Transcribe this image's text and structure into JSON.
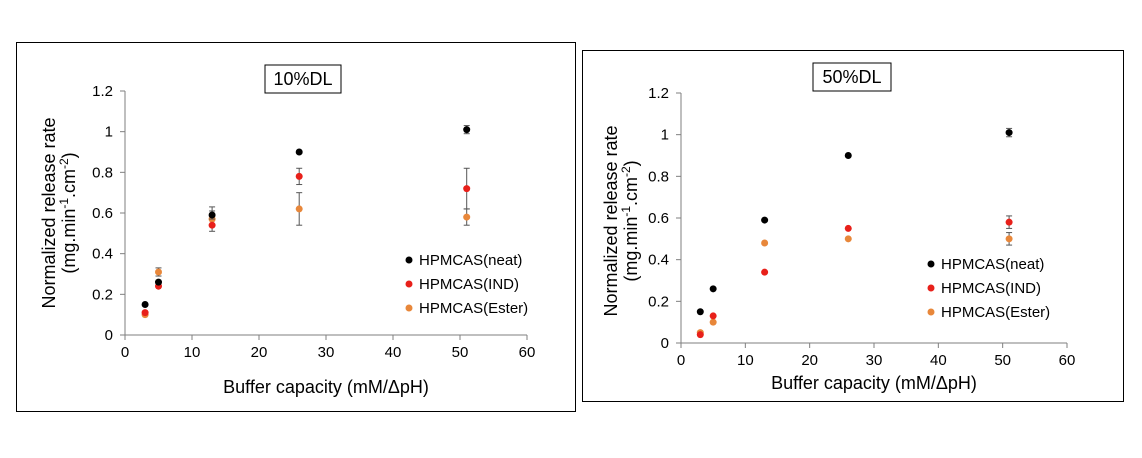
{
  "chart_data": [
    {
      "type": "scatter",
      "title": "10%DL",
      "xlabel": "Buffer capacity (mM/ΔpH)",
      "ylabel_line1": "Normalized release rate",
      "ylabel_line2_parts": [
        "(mg.min",
        "-1",
        ".cm",
        "-2",
        ")"
      ],
      "xlim": [
        0,
        60
      ],
      "ylim": [
        0,
        1.2
      ],
      "xticks": [
        "0",
        "10",
        "20",
        "30",
        "40",
        "50",
        "60"
      ],
      "yticks": [
        "0",
        "0.2",
        "0.4",
        "0.6",
        "0.8",
        "1",
        "1.2"
      ],
      "grid": false,
      "legend_position": "right",
      "series": [
        {
          "name": "HPMCAS(neat)",
          "color": "#000000",
          "points": [
            {
              "x": 3,
              "y": 0.15,
              "err": 0
            },
            {
              "x": 5,
              "y": 0.26,
              "err": 0
            },
            {
              "x": 13,
              "y": 0.59,
              "err": 0.02
            },
            {
              "x": 26,
              "y": 0.9,
              "err": 0
            },
            {
              "x": 51,
              "y": 1.01,
              "err": 0.02
            }
          ]
        },
        {
          "name": "HPMCAS(IND)",
          "color": "#e8201a",
          "points": [
            {
              "x": 3,
              "y": 0.11,
              "err": 0
            },
            {
              "x": 5,
              "y": 0.24,
              "err": 0
            },
            {
              "x": 13,
              "y": 0.54,
              "err": 0
            },
            {
              "x": 26,
              "y": 0.78,
              "err": 0.04
            },
            {
              "x": 51,
              "y": 0.72,
              "err": 0.1
            }
          ]
        },
        {
          "name": "HPMCAS(Ester)",
          "color": "#e8873a",
          "points": [
            {
              "x": 3,
              "y": 0.1,
              "err": 0
            },
            {
              "x": 5,
              "y": 0.31,
              "err": 0.02
            },
            {
              "x": 13,
              "y": 0.57,
              "err": 0.06
            },
            {
              "x": 26,
              "y": 0.62,
              "err": 0.08
            },
            {
              "x": 51,
              "y": 0.58,
              "err": 0.04
            }
          ]
        }
      ]
    },
    {
      "type": "scatter",
      "title": "50%DL",
      "xlabel": "Buffer capacity (mM/ΔpH)",
      "ylabel_line1": "Normalized release rate",
      "ylabel_line2_parts": [
        "(mg.min",
        "-1",
        ".cm",
        "-2",
        ")"
      ],
      "xlim": [
        0,
        60
      ],
      "ylim": [
        0,
        1.2
      ],
      "xticks": [
        "0",
        "10",
        "20",
        "30",
        "40",
        "50",
        "60"
      ],
      "yticks": [
        "0",
        "0.2",
        "0.4",
        "0.6",
        "0.8",
        "1",
        "1.2"
      ],
      "grid": false,
      "legend_position": "right",
      "series": [
        {
          "name": "HPMCAS(neat)",
          "color": "#000000",
          "points": [
            {
              "x": 3,
              "y": 0.15,
              "err": 0
            },
            {
              "x": 5,
              "y": 0.26,
              "err": 0
            },
            {
              "x": 13,
              "y": 0.59,
              "err": 0
            },
            {
              "x": 26,
              "y": 0.9,
              "err": 0
            },
            {
              "x": 51,
              "y": 1.01,
              "err": 0.02
            }
          ]
        },
        {
          "name": "HPMCAS(IND)",
          "color": "#e8201a",
          "points": [
            {
              "x": 3,
              "y": 0.04,
              "err": 0
            },
            {
              "x": 5,
              "y": 0.13,
              "err": 0
            },
            {
              "x": 13,
              "y": 0.34,
              "err": 0
            },
            {
              "x": 26,
              "y": 0.55,
              "err": 0
            },
            {
              "x": 51,
              "y": 0.58,
              "err": 0.03
            }
          ]
        },
        {
          "name": "HPMCAS(Ester)",
          "color": "#e8873a",
          "points": [
            {
              "x": 3,
              "y": 0.05,
              "err": 0
            },
            {
              "x": 5,
              "y": 0.1,
              "err": 0
            },
            {
              "x": 13,
              "y": 0.48,
              "err": 0
            },
            {
              "x": 26,
              "y": 0.5,
              "err": 0
            },
            {
              "x": 51,
              "y": 0.5,
              "err": 0.03
            }
          ]
        }
      ]
    }
  ]
}
